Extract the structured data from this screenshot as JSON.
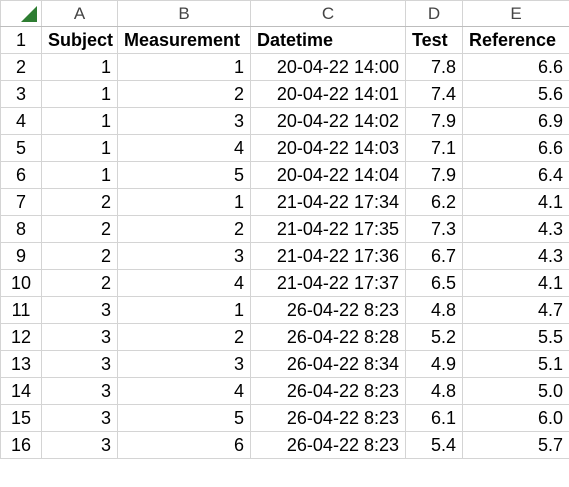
{
  "sheet": {
    "column_headers": [
      "A",
      "B",
      "C",
      "D",
      "E"
    ],
    "header_row": {
      "row_label": "1",
      "cells": [
        "Subject",
        "Measurement",
        "Datetime",
        "Test",
        "Reference"
      ]
    },
    "rows": [
      {
        "row_label": "2",
        "cells": [
          "1",
          "1",
          "20-04-22 14:00",
          "7.8",
          "6.6"
        ]
      },
      {
        "row_label": "3",
        "cells": [
          "1",
          "2",
          "20-04-22 14:01",
          "7.4",
          "5.6"
        ]
      },
      {
        "row_label": "4",
        "cells": [
          "1",
          "3",
          "20-04-22 14:02",
          "7.9",
          "6.9"
        ]
      },
      {
        "row_label": "5",
        "cells": [
          "1",
          "4",
          "20-04-22 14:03",
          "7.1",
          "6.6"
        ]
      },
      {
        "row_label": "6",
        "cells": [
          "1",
          "5",
          "20-04-22 14:04",
          "7.9",
          "6.4"
        ]
      },
      {
        "row_label": "7",
        "cells": [
          "2",
          "1",
          "21-04-22 17:34",
          "6.2",
          "4.1"
        ]
      },
      {
        "row_label": "8",
        "cells": [
          "2",
          "2",
          "21-04-22 17:35",
          "7.3",
          "4.3"
        ]
      },
      {
        "row_label": "9",
        "cells": [
          "2",
          "3",
          "21-04-22 17:36",
          "6.7",
          "4.3"
        ]
      },
      {
        "row_label": "10",
        "cells": [
          "2",
          "4",
          "21-04-22 17:37",
          "6.5",
          "4.1"
        ]
      },
      {
        "row_label": "11",
        "cells": [
          "3",
          "1",
          "26-04-22 8:23",
          "4.8",
          "4.7"
        ]
      },
      {
        "row_label": "12",
        "cells": [
          "3",
          "2",
          "26-04-22 8:28",
          "5.2",
          "5.5"
        ]
      },
      {
        "row_label": "13",
        "cells": [
          "3",
          "3",
          "26-04-22 8:34",
          "4.9",
          "5.1"
        ]
      },
      {
        "row_label": "14",
        "cells": [
          "3",
          "4",
          "26-04-22 8:23",
          "4.8",
          "5.0"
        ]
      },
      {
        "row_label": "15",
        "cells": [
          "3",
          "5",
          "26-04-22 8:23",
          "6.1",
          "6.0"
        ]
      },
      {
        "row_label": "16",
        "cells": [
          "3",
          "6",
          "26-04-22 8:23",
          "5.4",
          "5.7"
        ]
      }
    ],
    "colors": {
      "gridline": "#d4d4d4",
      "header_border": "#bdbdbd",
      "header_text": "#444444",
      "select_all_triangle": "#2e7d32"
    }
  }
}
